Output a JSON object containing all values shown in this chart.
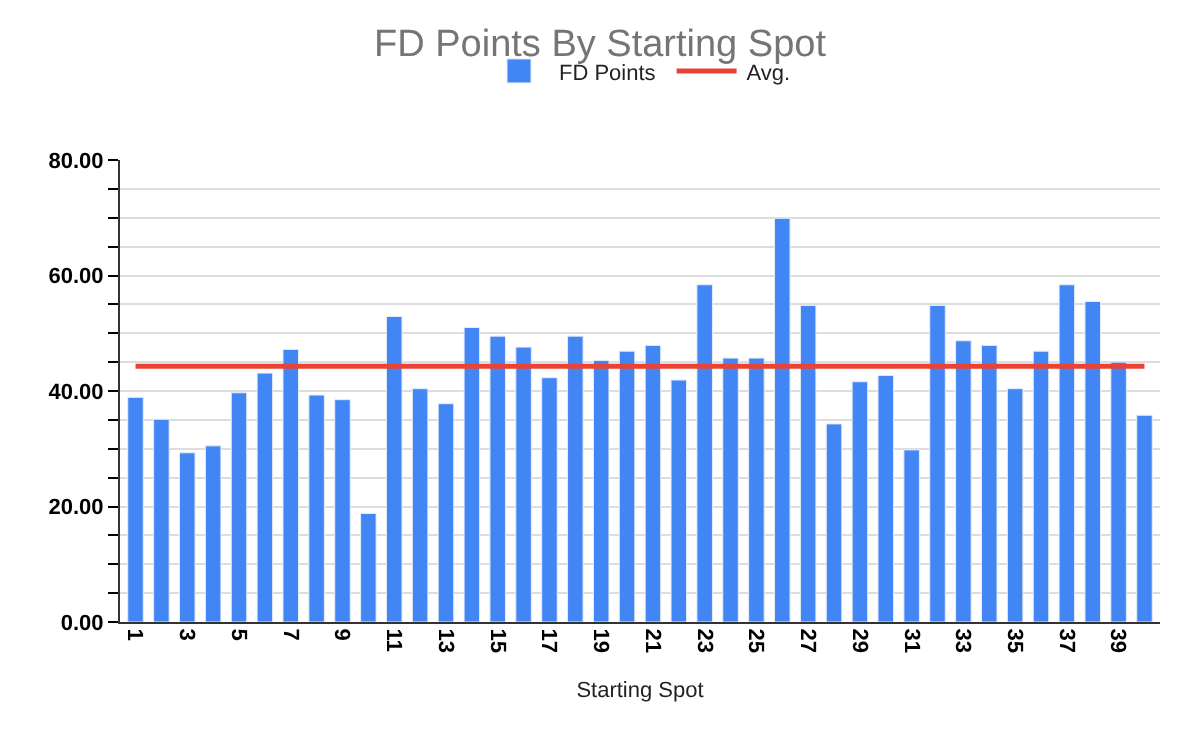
{
  "chart_data": {
    "type": "bar",
    "title": "FD Points By Starting Spot",
    "xlabel": "Starting Spot",
    "categories": [
      "1",
      null,
      "3",
      null,
      "5",
      null,
      "7",
      null,
      "9",
      null,
      "11",
      null,
      "13",
      null,
      "15",
      null,
      "17",
      null,
      "19",
      null,
      "21",
      null,
      "23",
      null,
      "25",
      null,
      "27",
      null,
      "29",
      null,
      "31",
      null,
      "33",
      null,
      "35",
      null,
      "37",
      null,
      "39",
      null
    ],
    "series": [
      {
        "name": "FD Points",
        "color": "#4285f4",
        "values": [
          38.9,
          35.1,
          29.3,
          30.5,
          39.7,
          43.1,
          47.2,
          39.3,
          38.5,
          18.8,
          52.9,
          40.4,
          37.8,
          51.0,
          49.5,
          47.6,
          42.3,
          49.5,
          45.3,
          46.9,
          47.9,
          41.9,
          58.4,
          45.7,
          45.7,
          69.9,
          54.8,
          34.3,
          41.6,
          42.7,
          29.8,
          54.8,
          48.7,
          47.9,
          40.4,
          46.9,
          58.4,
          55.5,
          45.0,
          35.8
        ]
      }
    ],
    "ref_lines": [
      {
        "axis": "y",
        "value": 44.3,
        "label": "Avg.",
        "color": "#ea4335"
      }
    ],
    "ylim": [
      0,
      80
    ],
    "yticks": [
      {
        "value": 0,
        "label": "0.00"
      },
      {
        "value": 5,
        "label": null
      },
      {
        "value": 10,
        "label": null
      },
      {
        "value": 15,
        "label": null
      },
      {
        "value": 20,
        "label": "20.00"
      },
      {
        "value": 25,
        "label": null
      },
      {
        "value": 30,
        "label": null
      },
      {
        "value": 35,
        "label": null
      },
      {
        "value": 40,
        "label": "40.00"
      },
      {
        "value": 45,
        "label": null
      },
      {
        "value": 50,
        "label": null
      },
      {
        "value": 55,
        "label": null
      },
      {
        "value": 60,
        "label": "60.00"
      },
      {
        "value": 65,
        "label": null
      },
      {
        "value": 70,
        "label": null
      },
      {
        "value": 75,
        "label": null
      },
      {
        "value": 80,
        "label": "80.00"
      }
    ],
    "grid": "y",
    "legend": "top"
  }
}
